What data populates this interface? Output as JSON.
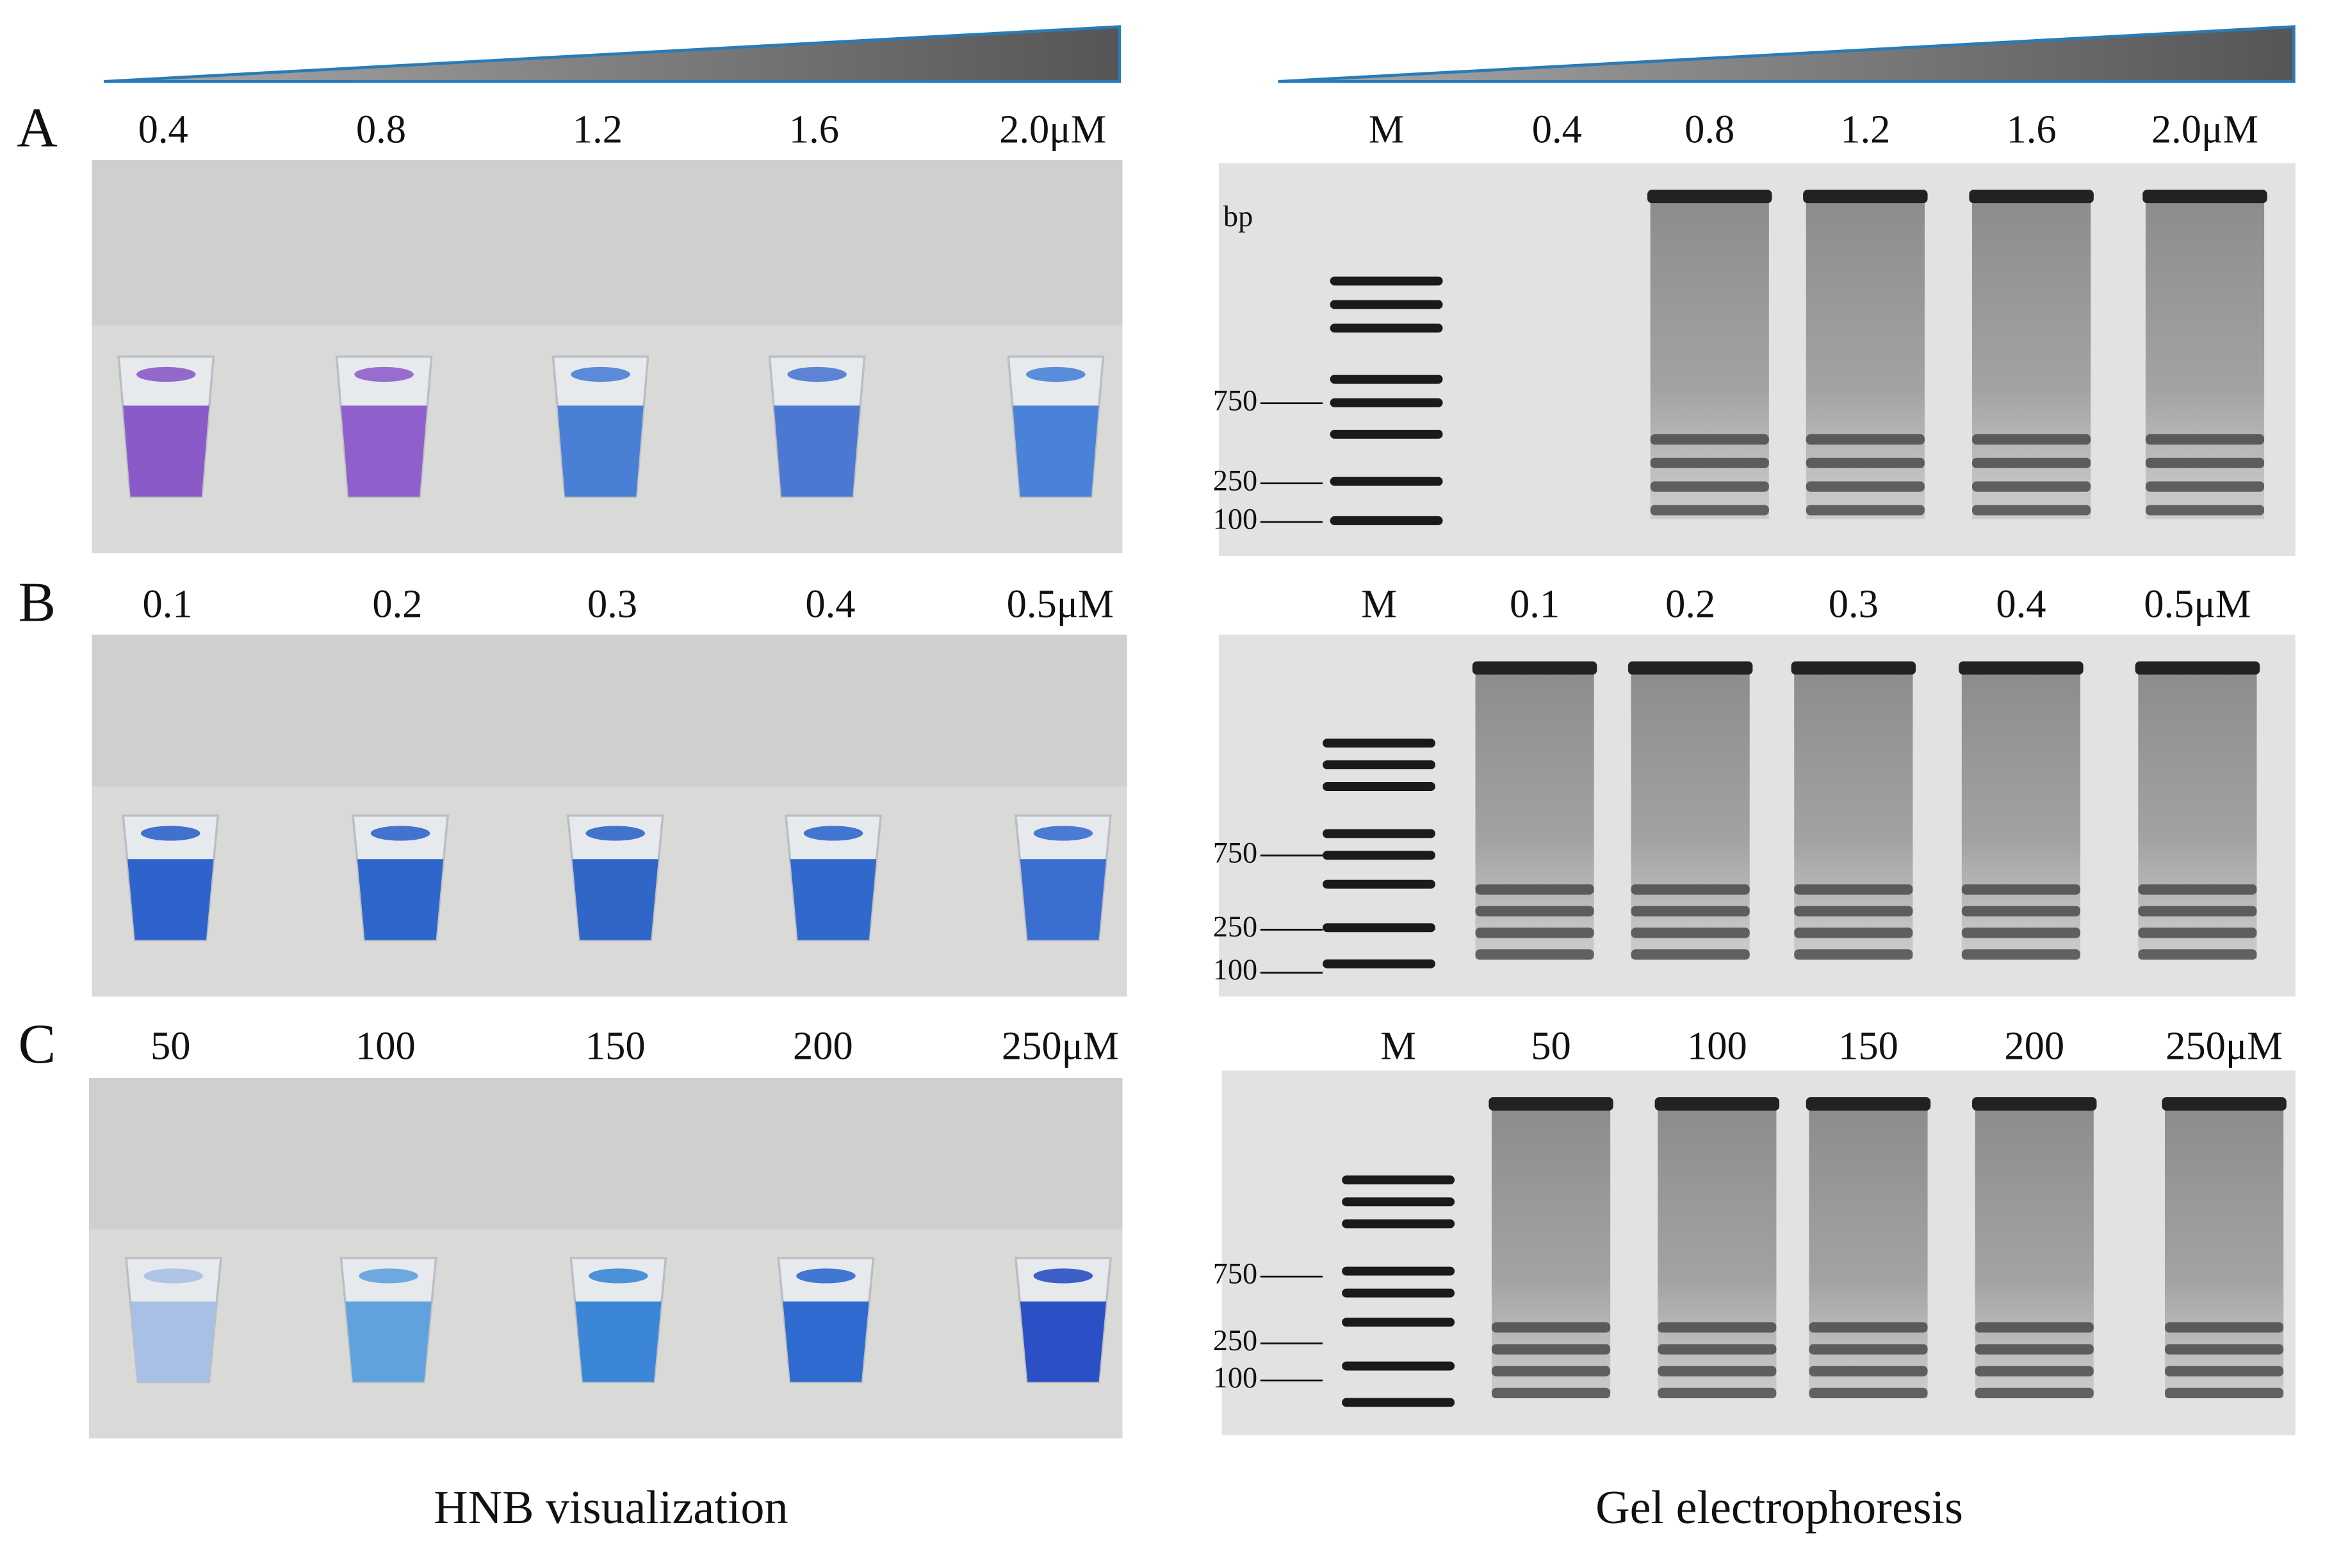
{
  "panels": [
    {
      "label": "A",
      "hnb_labels": [
        "0.4",
        "0.8",
        "1.2",
        "1.6",
        "2.0μM"
      ],
      "gel_labels": [
        "M",
        "0.4",
        "0.8",
        "1.2",
        "1.6",
        "2.0μM"
      ]
    },
    {
      "label": "B",
      "hnb_labels": [
        "0.1",
        "0.2",
        "0.3",
        "0.4",
        "0.5μM"
      ],
      "gel_labels": [
        "M",
        "0.1",
        "0.2",
        "0.3",
        "0.4",
        "0.5μM"
      ]
    },
    {
      "label": "C",
      "hnb_labels": [
        "50",
        "100",
        "150",
        "200",
        "250μM"
      ],
      "gel_labels": [
        "M",
        "50",
        "100",
        "150",
        "200",
        "250μM"
      ]
    }
  ],
  "gel_unit": "bp",
  "gel_markers": [
    "750",
    "250",
    "100"
  ],
  "captions": {
    "left": "HNB visualization",
    "right": "Gel electrophoresis"
  }
}
